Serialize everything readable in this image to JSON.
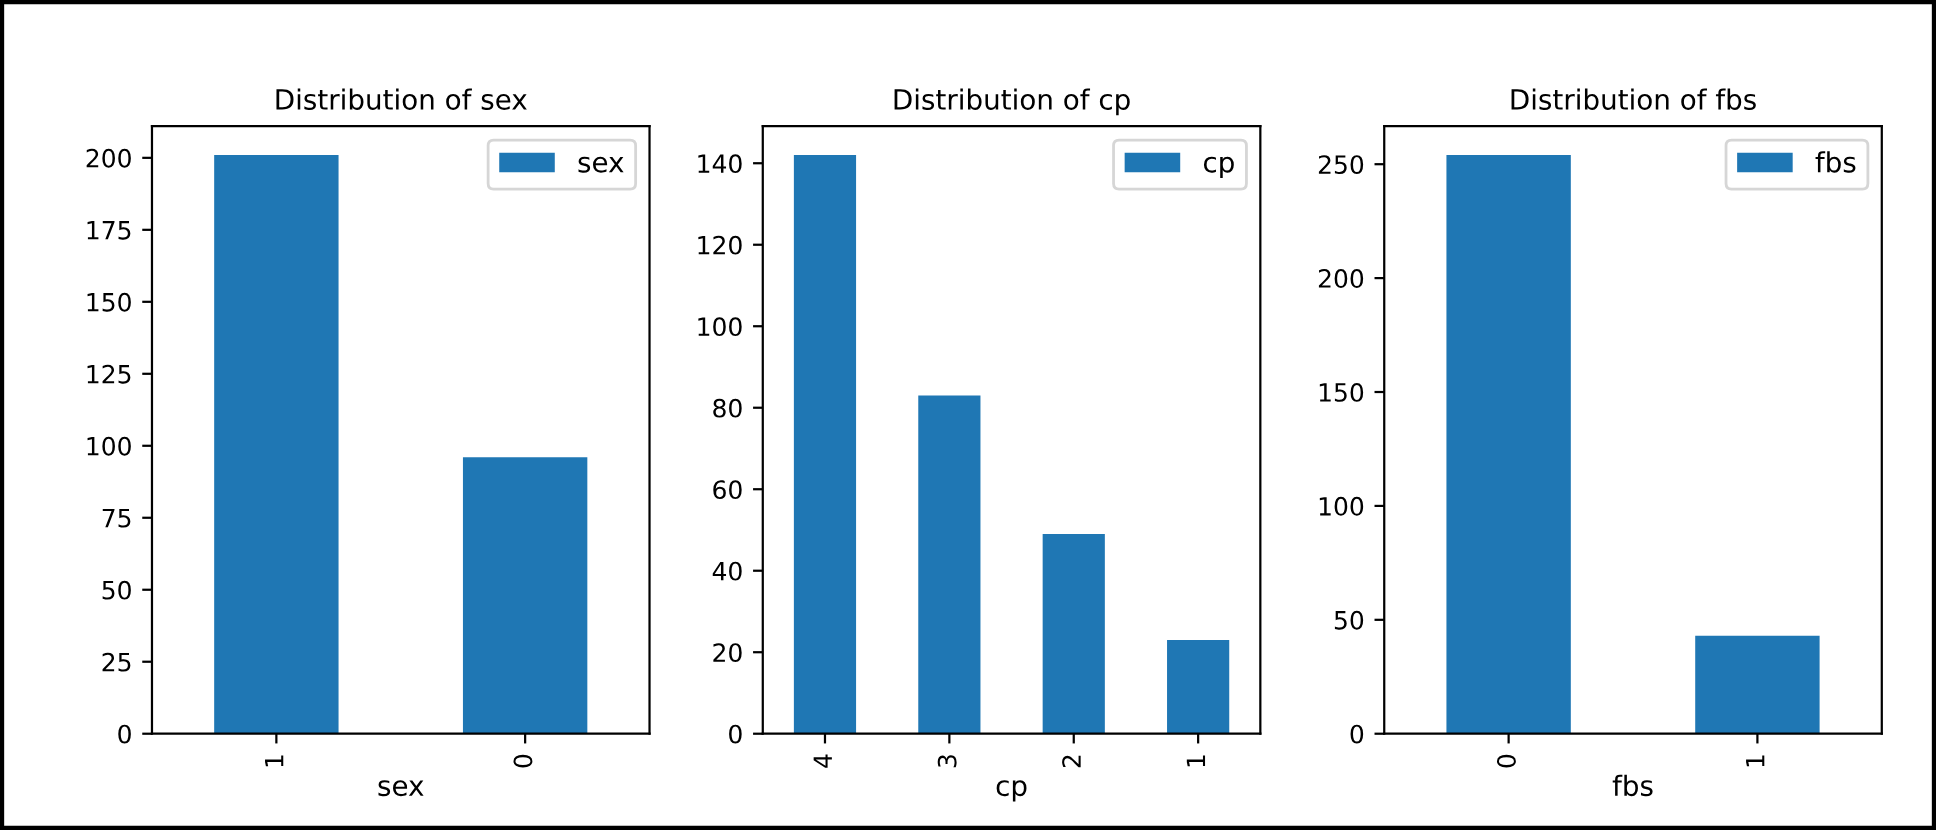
{
  "chart_data": [
    {
      "type": "bar",
      "title": "Distribution of sex",
      "xlabel": "sex",
      "categories": [
        "1",
        "0"
      ],
      "series": [
        {
          "name": "sex",
          "color": "#1f77b4",
          "values": [
            201,
            96
          ]
        }
      ],
      "ylim": [
        0,
        211
      ],
      "yticks": [
        0,
        25,
        50,
        75,
        100,
        125,
        150,
        175,
        200
      ],
      "legend": "top right",
      "grid": false
    },
    {
      "type": "bar",
      "title": "Distribution of cp",
      "xlabel": "cp",
      "categories": [
        "4",
        "3",
        "2",
        "1"
      ],
      "series": [
        {
          "name": "cp",
          "color": "#1f77b4",
          "values": [
            142,
            83,
            49,
            23
          ]
        }
      ],
      "ylim": [
        0,
        149.1
      ],
      "yticks": [
        0,
        20,
        40,
        60,
        80,
        100,
        120,
        140
      ],
      "legend": "top right",
      "grid": false
    },
    {
      "type": "bar",
      "title": "Distribution of fbs",
      "xlabel": "fbs",
      "categories": [
        "0",
        "1"
      ],
      "series": [
        {
          "name": "fbs",
          "color": "#1f77b4",
          "values": [
            254,
            43
          ]
        }
      ],
      "ylim": [
        0,
        266.7
      ],
      "yticks": [
        0,
        50,
        100,
        150,
        200,
        250
      ],
      "legend": "top right",
      "grid": false
    }
  ]
}
